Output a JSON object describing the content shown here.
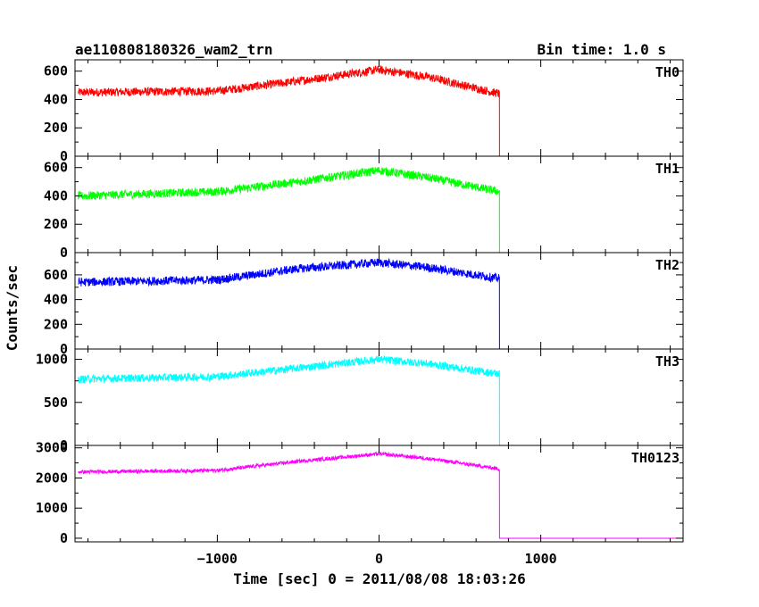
{
  "header": {
    "title": "ae110808180326_wam2_trn",
    "bin_time": "Bin time: 1.0 s"
  },
  "chart_data": {
    "type": "line",
    "xlabel": "Time [sec] 0 = 2011/08/08 18:03:26",
    "ylabel": "Counts/sec",
    "xlim": [
      -1880,
      1880
    ],
    "x_ticks": [
      -1000,
      0,
      1000
    ],
    "x_tick_labels": [
      "−1000",
      "0",
      "1000"
    ],
    "x_data_start": -1860,
    "x_data_end": 1860,
    "drop_time": 745,
    "panels": [
      {
        "name": "TH0",
        "color": "#ff0000",
        "ylim": [
          0,
          680
        ],
        "y_ticks": [
          0,
          200,
          400,
          600
        ],
        "y_tick_labels": [
          "0",
          "200",
          "400",
          "600"
        ],
        "profile": [
          [
            -1860,
            450
          ],
          [
            -1000,
            460
          ],
          [
            -500,
            530
          ],
          [
            0,
            610
          ],
          [
            300,
            560
          ],
          [
            745,
            440
          ]
        ],
        "noise_amplitude": 30,
        "after_drop_value": 0
      },
      {
        "name": "TH1",
        "color": "#00ff00",
        "ylim": [
          0,
          680
        ],
        "y_ticks": [
          0,
          200,
          400,
          600
        ],
        "y_tick_labels": [
          "0",
          "200",
          "400",
          "600"
        ],
        "profile": [
          [
            -1860,
            400
          ],
          [
            -1000,
            430
          ],
          [
            -500,
            500
          ],
          [
            0,
            580
          ],
          [
            300,
            530
          ],
          [
            745,
            430
          ]
        ],
        "noise_amplitude": 30,
        "after_drop_value": 0
      },
      {
        "name": "TH2",
        "color": "#0000ff",
        "ylim": [
          0,
          780
        ],
        "y_ticks": [
          0,
          200,
          400,
          600
        ],
        "y_tick_labels": [
          "0",
          "200",
          "400",
          "600"
        ],
        "profile": [
          [
            -1860,
            540
          ],
          [
            -1000,
            560
          ],
          [
            -500,
            650
          ],
          [
            0,
            700
          ],
          [
            300,
            660
          ],
          [
            745,
            570
          ]
        ],
        "noise_amplitude": 35,
        "after_drop_value": 0
      },
      {
        "name": "TH3",
        "color": "#00ffff",
        "ylim": [
          0,
          1120
        ],
        "y_ticks": [
          0,
          500,
          1000
        ],
        "y_tick_labels": [
          "0",
          "500",
          "1000"
        ],
        "profile": [
          [
            -1860,
            770
          ],
          [
            -1000,
            800
          ],
          [
            -500,
            900
          ],
          [
            0,
            1000
          ],
          [
            300,
            950
          ],
          [
            745,
            830
          ]
        ],
        "noise_amplitude": 45,
        "after_drop_value": 0
      },
      {
        "name": "TH0123",
        "color": "#ff00ff",
        "ylim": [
          -120,
          3080
        ],
        "y_ticks": [
          0,
          1000,
          2000,
          3000
        ],
        "y_tick_labels": [
          "0",
          "1000",
          "2000",
          "3000"
        ],
        "profile": [
          [
            -1860,
            2200
          ],
          [
            -1000,
            2250
          ],
          [
            -500,
            2550
          ],
          [
            0,
            2800
          ],
          [
            300,
            2650
          ],
          [
            745,
            2300
          ]
        ],
        "noise_amplitude": 60,
        "after_drop_value": 0
      }
    ]
  }
}
